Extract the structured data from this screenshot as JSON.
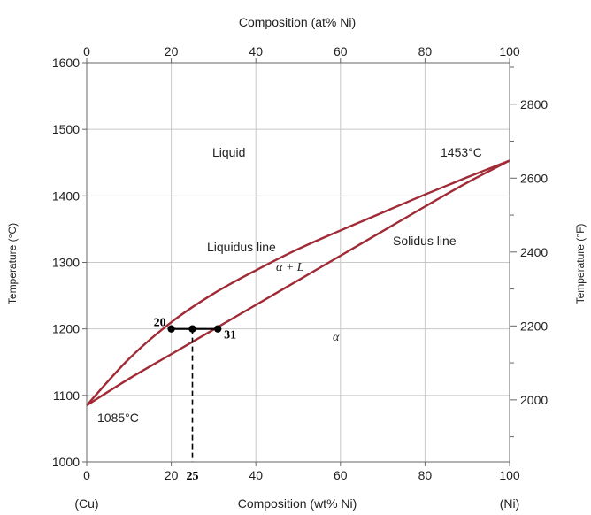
{
  "chart_data": {
    "type": "line",
    "title": "",
    "x_top_label": "Composition (at% Ni)",
    "x_bottom_label": "Composition (wt% Ni)",
    "y_left_label": "Temperature (°C)",
    "y_right_label": "Temperature (°F)",
    "xlim": [
      0,
      100
    ],
    "ylim": [
      1000,
      1600
    ],
    "x_ticks": [
      0,
      20,
      40,
      60,
      80,
      100
    ],
    "y_ticks": [
      1000,
      1100,
      1200,
      1300,
      1400,
      1500,
      1600
    ],
    "y_right_ticks": [
      2000,
      2200,
      2400,
      2600,
      2800
    ],
    "grid": true,
    "end_labels": {
      "left": "(Cu)",
      "right": "(Ni)"
    },
    "series": [
      {
        "name": "Liquidus line",
        "color": "#a02a35",
        "x": [
          0,
          10,
          20,
          30,
          40,
          50,
          60,
          70,
          80,
          90,
          100
        ],
        "y": [
          1085,
          1155,
          1210,
          1253,
          1288,
          1320,
          1348,
          1375,
          1402,
          1428,
          1453
        ]
      },
      {
        "name": "Solidus line",
        "color": "#a02a35",
        "x": [
          0,
          10,
          20,
          30,
          40,
          50,
          60,
          70,
          80,
          90,
          100
        ],
        "y": [
          1085,
          1125,
          1162,
          1199,
          1236,
          1273,
          1310,
          1347,
          1384,
          1420,
          1453
        ]
      }
    ],
    "annotations": {
      "liquid": "Liquid",
      "liquidus": "Liquidus line",
      "solidus": "Solidus line",
      "two_phase": "α + L",
      "alpha": "α",
      "cu_melting": "1085°C",
      "ni_melting": "1453°C"
    },
    "tie_line": {
      "temperature": 1200,
      "points": [
        {
          "x": 20,
          "label": "20"
        },
        {
          "x": 25,
          "label": "25"
        },
        {
          "x": 31,
          "label": "31"
        }
      ]
    }
  }
}
